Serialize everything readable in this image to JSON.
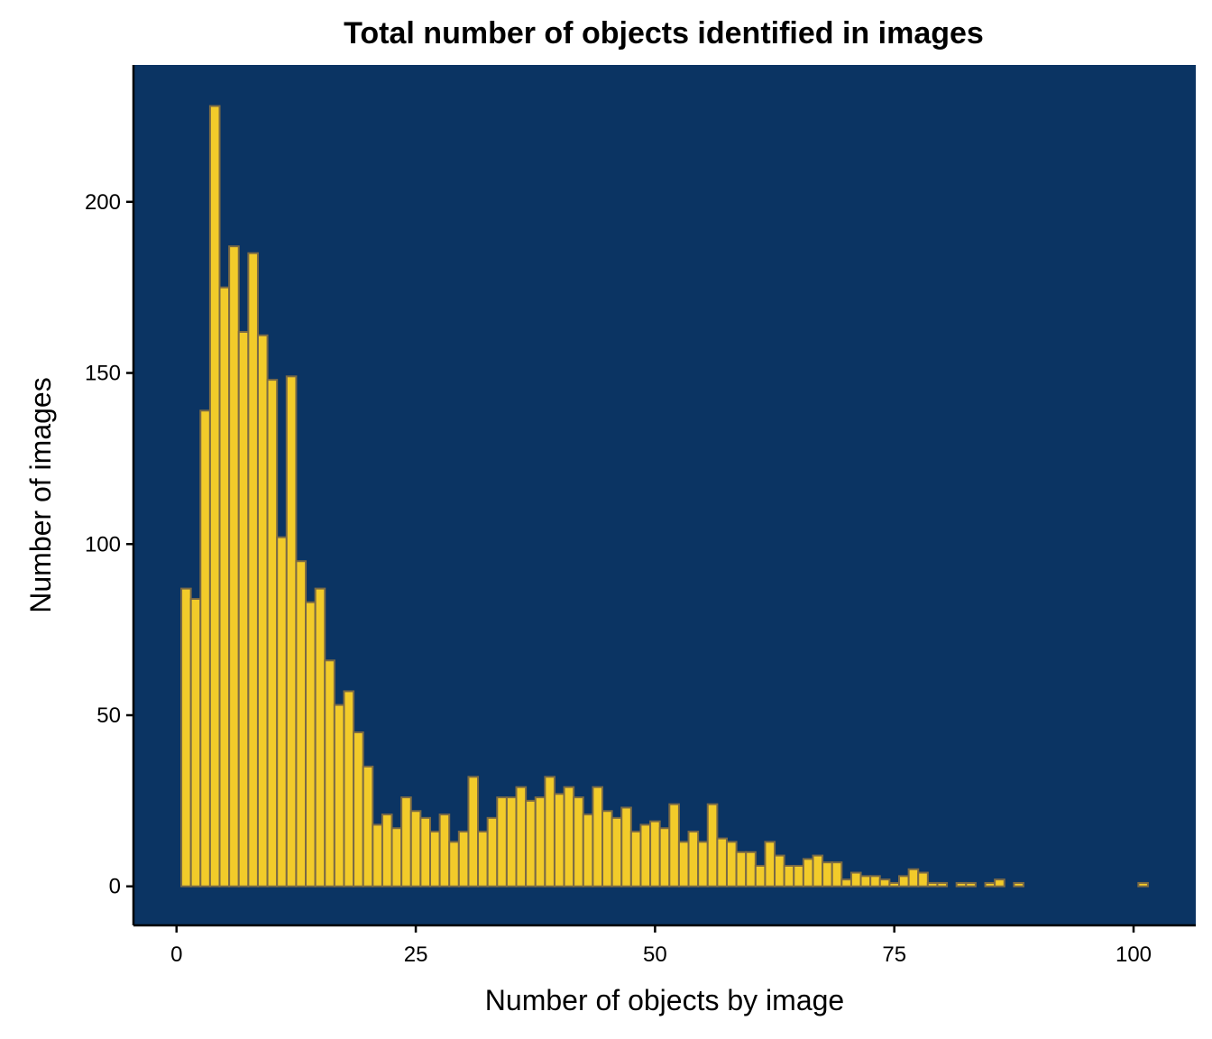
{
  "colors": {
    "panel": "#0b3463",
    "bar_fill": "#f2cb2a",
    "bar_stroke": "#7a6a46",
    "axis": "#000000"
  },
  "chart_data": {
    "type": "bar",
    "title": "Total number of objects identified in images",
    "xlabel": "Number of objects by image",
    "ylabel": "Number of images",
    "xlim": [
      -4.5,
      106.5
    ],
    "ylim": [
      -11.4,
      240
    ],
    "grid": false,
    "x_ticks": [
      0,
      25,
      50,
      75,
      100
    ],
    "y_ticks": [
      0,
      50,
      100,
      150,
      200
    ],
    "x_tick_labels": [
      "0",
      "25",
      "50",
      "75",
      "100"
    ],
    "y_tick_labels": [
      "0",
      "50",
      "100",
      "150",
      "200"
    ],
    "bin_width": 1,
    "x": [
      1,
      2,
      3,
      4,
      5,
      6,
      7,
      8,
      9,
      10,
      11,
      12,
      13,
      14,
      15,
      16,
      17,
      18,
      19,
      20,
      21,
      22,
      23,
      24,
      25,
      26,
      27,
      28,
      29,
      30,
      31,
      32,
      33,
      34,
      35,
      36,
      37,
      38,
      39,
      40,
      41,
      42,
      43,
      44,
      45,
      46,
      47,
      48,
      49,
      50,
      51,
      52,
      53,
      54,
      55,
      56,
      57,
      58,
      59,
      60,
      61,
      62,
      63,
      64,
      65,
      66,
      67,
      68,
      69,
      70,
      71,
      72,
      73,
      74,
      75,
      76,
      77,
      78,
      79,
      80,
      82,
      83,
      85,
      86,
      88,
      101
    ],
    "values": [
      87,
      84,
      139,
      228,
      175,
      187,
      162,
      185,
      161,
      148,
      102,
      149,
      95,
      83,
      87,
      66,
      53,
      57,
      45,
      35,
      18,
      21,
      17,
      26,
      22,
      20,
      16,
      21,
      13,
      16,
      32,
      16,
      20,
      26,
      26,
      29,
      25,
      26,
      32,
      27,
      29,
      26,
      21,
      29,
      22,
      20,
      23,
      16,
      18,
      19,
      17,
      24,
      13,
      16,
      13,
      24,
      14,
      13,
      10,
      10,
      6,
      13,
      9,
      6,
      6,
      8,
      9,
      7,
      7,
      2,
      4,
      3,
      3,
      2,
      1,
      3,
      5,
      4,
      1,
      1,
      1,
      1,
      1,
      2,
      1,
      1
    ]
  }
}
